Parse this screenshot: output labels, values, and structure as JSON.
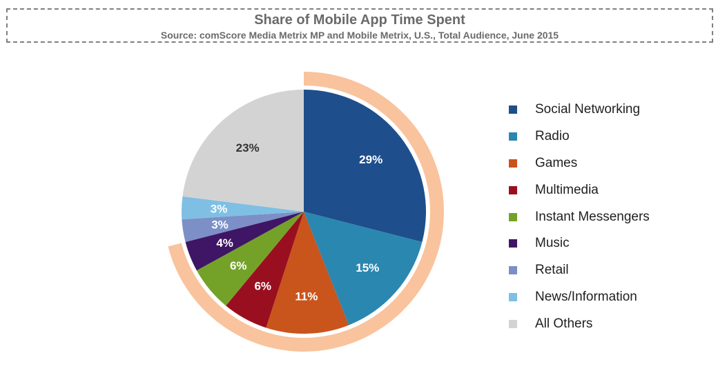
{
  "chart_data": {
    "type": "pie",
    "title": "Share of Mobile App Time Spent",
    "subtitle": "Source: comScore Media Metrix MP and Mobile Metrix, U.S., Total Audience, June 2015",
    "slices": [
      {
        "name": "Social Networking",
        "value": 29,
        "label": "29%",
        "color": "#1f4e8c",
        "label_color": "#ffffff",
        "highlighted": true
      },
      {
        "name": "Radio",
        "value": 15,
        "label": "15%",
        "color": "#2a87b0",
        "label_color": "#ffffff",
        "highlighted": true
      },
      {
        "name": "Games",
        "value": 11,
        "label": "11%",
        "color": "#c9541c",
        "label_color": "#ffffff",
        "highlighted": true
      },
      {
        "name": "Multimedia",
        "value": 6,
        "label": "6%",
        "color": "#9a0f1f",
        "label_color": "#ffffff",
        "highlighted": true
      },
      {
        "name": "Instant Messengers",
        "value": 6,
        "label": "6%",
        "color": "#74a229",
        "label_color": "#ffffff",
        "highlighted": true
      },
      {
        "name": "Music",
        "value": 4,
        "label": "4%",
        "color": "#3f1565",
        "label_color": "#ffffff",
        "highlighted": true
      },
      {
        "name": "Retail",
        "value": 3,
        "label": "3%",
        "color": "#7c8fc6",
        "label_color": "#ffffff",
        "highlighted": false
      },
      {
        "name": "News/Information",
        "value": 3,
        "label": "3%",
        "color": "#7fbfe3",
        "label_color": "#ffffff",
        "highlighted": false
      },
      {
        "name": "All Others",
        "value": 23,
        "label": "23%",
        "color": "#d3d3d3",
        "label_color": "#333333",
        "highlighted": false
      }
    ],
    "highlight_ring_color": "#f9c39d",
    "start_angle": "12 o'clock",
    "direction": "clockwise",
    "legend_position": "right"
  }
}
